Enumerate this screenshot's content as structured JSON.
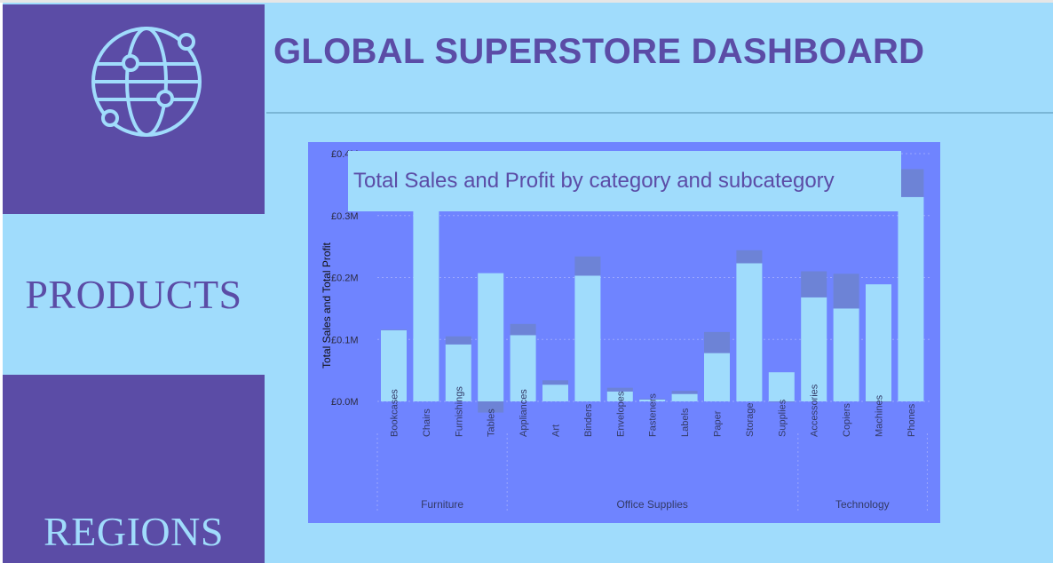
{
  "header": {
    "title": "GLOBAL SUPERSTORE DASHBOARD"
  },
  "nav": {
    "globe_icon": "globe-network-icon",
    "products_label": "PRODUCTS",
    "regions_label": "REGIONS"
  },
  "colors": {
    "purple": "#5b4ca6",
    "light_blue": "#a0dcfc",
    "chart_bg": "#6f84ff",
    "sales_bar": "#a0dcfc",
    "profit_bar": "#6d83d6"
  },
  "chart_data": {
    "type": "bar",
    "title": "Total Sales and Profit by category and subcategory",
    "ylabel": "Total Sales and Total Profit",
    "xlabel": "",
    "ylim": [
      0,
      0.4
    ],
    "y_unit": "£M",
    "y_ticks": [
      "£0.0M",
      "£0.1M",
      "£0.2M",
      "£0.3M",
      "£0.4M"
    ],
    "grid": true,
    "groups": [
      {
        "name": "Furniture",
        "categories": [
          "Bookcases",
          "Chairs",
          "Furnishings",
          "Tables"
        ]
      },
      {
        "name": "Office Supplies",
        "categories": [
          "Appliances",
          "Art",
          "Binders",
          "Envelopes",
          "Fasteners",
          "Labels",
          "Paper",
          "Storage",
          "Supplies"
        ]
      },
      {
        "name": "Technology",
        "categories": [
          "Accessories",
          "Copiers",
          "Machines",
          "Phones"
        ]
      }
    ],
    "categories": [
      "Bookcases",
      "Chairs",
      "Furnishings",
      "Tables",
      "Appliances",
      "Art",
      "Binders",
      "Envelopes",
      "Fasteners",
      "Labels",
      "Paper",
      "Storage",
      "Supplies",
      "Accessories",
      "Copiers",
      "Machines",
      "Phones"
    ],
    "series": [
      {
        "name": "Total Sales",
        "values": [
          0.115,
          0.33,
          0.092,
          0.207,
          0.107,
          0.027,
          0.203,
          0.016,
          0.003,
          0.012,
          0.078,
          0.223,
          0.047,
          0.168,
          0.15,
          0.189,
          0.33
        ]
      },
      {
        "name": "Total Profit",
        "values": [
          0.001,
          0.035,
          0.013,
          -0.018,
          0.018,
          0.007,
          0.031,
          0.006,
          0.001,
          0.005,
          0.034,
          0.021,
          -0.001,
          0.042,
          0.056,
          -0.001,
          0.045
        ]
      }
    ]
  }
}
